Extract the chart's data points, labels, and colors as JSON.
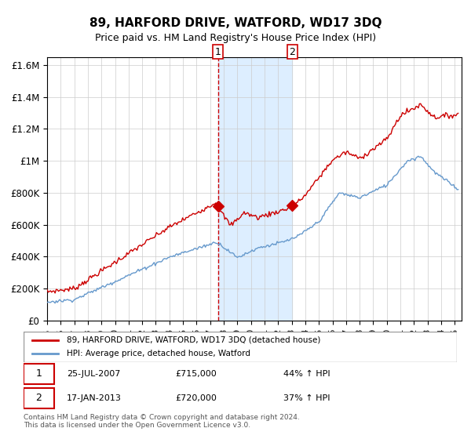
{
  "title": "89, HARFORD DRIVE, WATFORD, WD17 3DQ",
  "subtitle": "Price paid vs. HM Land Registry's House Price Index (HPI)",
  "legend_label_red": "89, HARFORD DRIVE, WATFORD, WD17 3DQ (detached house)",
  "legend_label_blue": "HPI: Average price, detached house, Watford",
  "transaction1_date": "25-JUL-2007",
  "transaction1_price": 715000,
  "transaction1_hpi": "44% ↑ HPI",
  "transaction2_date": "17-JAN-2013",
  "transaction2_price": 720000,
  "transaction2_hpi": "37% ↑ HPI",
  "footnote": "Contains HM Land Registry data © Crown copyright and database right 2024.\nThis data is licensed under the Open Government Licence v3.0.",
  "red_color": "#cc0000",
  "blue_color": "#6699cc",
  "shade_color": "#ddeeff",
  "grid_color": "#cccccc",
  "ylim": [
    0,
    1650000
  ],
  "yticks": [
    0,
    200000,
    400000,
    600000,
    800000,
    1000000,
    1200000,
    1400000,
    1600000
  ],
  "ytick_labels": [
    "£0",
    "£200K",
    "£400K",
    "£600K",
    "£800K",
    "£1M",
    "£1.2M",
    "£1.4M",
    "£1.6M"
  ]
}
